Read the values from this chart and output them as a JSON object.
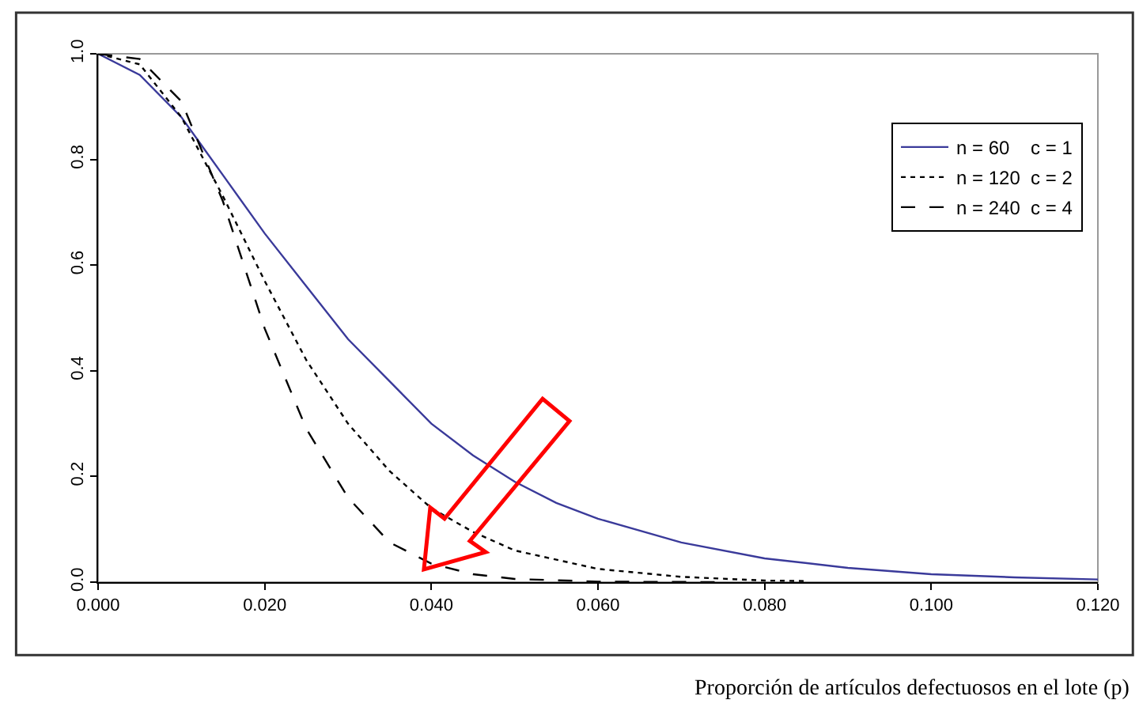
{
  "chart_data": {
    "type": "line",
    "xlabel": "Proporción de artículos defectuosos en el lote (p)",
    "xlim": [
      0,
      0.12
    ],
    "ylim": [
      0,
      1
    ],
    "xticks": [
      {
        "value": 0,
        "label": "0.000"
      },
      {
        "value": 0.02,
        "label": "0.020"
      },
      {
        "value": 0.04,
        "label": "0.040"
      },
      {
        "value": 0.06,
        "label": "0.060"
      },
      {
        "value": 0.08,
        "label": "0.080"
      },
      {
        "value": 0.1,
        "label": "0.100"
      },
      {
        "value": 0.12,
        "label": "0.120"
      }
    ],
    "yticks": [
      {
        "value": 0,
        "label": "0.0"
      },
      {
        "value": 0.2,
        "label": "0.2"
      },
      {
        "value": 0.4,
        "label": "0.4"
      },
      {
        "value": 0.6,
        "label": "0.6"
      },
      {
        "value": 0.8,
        "label": "0.8"
      },
      {
        "value": 1,
        "label": "1.0"
      }
    ],
    "grid": false,
    "legend": "top right",
    "marker": "none",
    "series": [
      {
        "name": "n = 60    c = 1",
        "color": "#3a3a9a",
        "line_style": "solid",
        "x": [
          0,
          0.005,
          0.01,
          0.015,
          0.02,
          0.025,
          0.03,
          0.035,
          0.04,
          0.045,
          0.05,
          0.055,
          0.06,
          0.07,
          0.08,
          0.09,
          0.1,
          0.11,
          0.12
        ],
        "values": [
          1,
          0.96,
          0.88,
          0.77,
          0.66,
          0.56,
          0.46,
          0.38,
          0.3,
          0.24,
          0.19,
          0.15,
          0.12,
          0.075,
          0.045,
          0.027,
          0.015,
          0.009,
          0.005
        ]
      },
      {
        "name": "n = 120  c = 2",
        "color": "#000000",
        "line_style": "dotted",
        "x": [
          0,
          0.005,
          0.01,
          0.015,
          0.02,
          0.025,
          0.03,
          0.035,
          0.04,
          0.045,
          0.05,
          0.06,
          0.07,
          0.08,
          0.085
        ],
        "values": [
          1,
          0.98,
          0.88,
          0.73,
          0.57,
          0.42,
          0.3,
          0.21,
          0.14,
          0.095,
          0.06,
          0.025,
          0.01,
          0.003,
          0.002
        ]
      },
      {
        "name": "n = 240  c = 4",
        "color": "#000000",
        "line_style": "dashed",
        "x": [
          0,
          0.005,
          0.01,
          0.015,
          0.02,
          0.025,
          0.03,
          0.035,
          0.04,
          0.045,
          0.05,
          0.06,
          0.075
        ],
        "values": [
          1,
          0.99,
          0.91,
          0.72,
          0.48,
          0.29,
          0.16,
          0.075,
          0.035,
          0.015,
          0.006,
          0.001,
          0
        ]
      }
    ]
  }
}
